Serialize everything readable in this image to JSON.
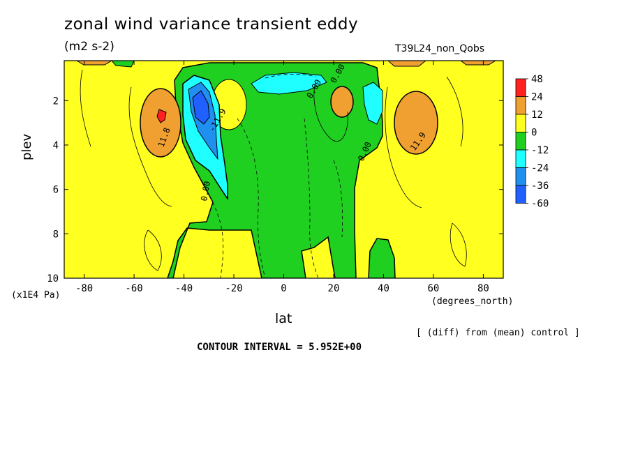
{
  "title": "zonal wind variance transient eddy",
  "units": "(m2 s-2)",
  "run_name": "T39L24_non_Qobs",
  "y_axis_units": "(x1E4 Pa)",
  "x_axis_units": "(degrees_north)",
  "diff_note": "[ (diff) from (mean) control ]",
  "contour_interval": "CONTOUR INTERVAL = 5.952E+00",
  "chart_data": {
    "type": "heatmap",
    "title": "zonal wind variance transient eddy",
    "subtitle": "(m2 s-2)",
    "xlabel": "lat",
    "ylabel": "plev",
    "xlim": [
      -88,
      88
    ],
    "ylim": [
      10,
      0.2
    ],
    "x_ticks": [
      -80,
      -60,
      -40,
      -20,
      0,
      20,
      40,
      60,
      80
    ],
    "y_ticks": [
      2,
      4,
      6,
      8,
      10
    ],
    "x_tick_labels": [
      "-80",
      "-60",
      "-40",
      "-20",
      "0",
      "20",
      "40",
      "60",
      "80"
    ],
    "y_tick_labels": [
      "2",
      "4",
      "6",
      "8",
      "10"
    ],
    "legend": {
      "placement": "right",
      "levels": [
        "48",
        "24",
        "12",
        "0",
        "-12",
        "-24",
        "-36",
        "-60"
      ],
      "colors": [
        "#ff2020",
        "#f0a030",
        "#ffff20",
        "#20d020",
        "#20ffff",
        "#2090f0",
        "#2060ff"
      ]
    },
    "contour_labels": [
      "11.8",
      "11.9",
      "0.00",
      "0.00",
      "0.00",
      "0.00",
      "-11.9"
    ],
    "features": [
      {
        "label": "southern positive maximum",
        "lat": -48,
        "plev": 2.6,
        "value": 25,
        "color": "#ff2020"
      },
      {
        "label": "southern negative minimum",
        "lat": -34,
        "plev": 2.3,
        "value": -45,
        "color": "#2060ff"
      },
      {
        "label": "northern positive maximum",
        "lat": 52,
        "plev": 2.9,
        "value": 20,
        "color": "#f0a030"
      },
      {
        "label": "northern negative minimum",
        "lat": 36,
        "plev": 2.0,
        "value": -20,
        "color": "#20ffff"
      }
    ]
  }
}
